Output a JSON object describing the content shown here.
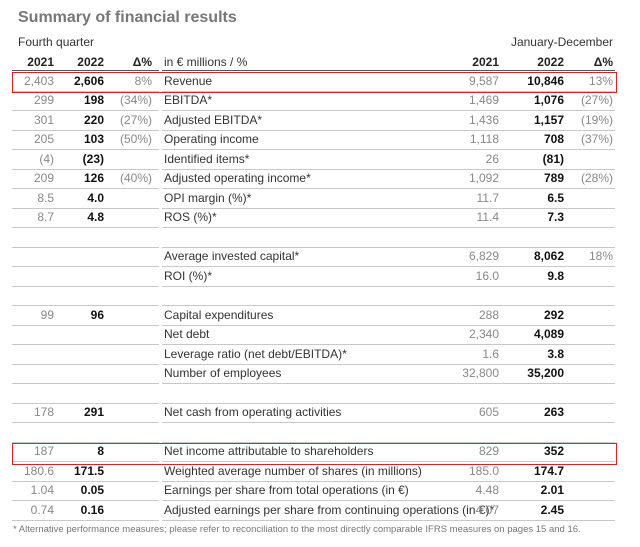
{
  "title": "Summary of financial results",
  "period_left": "Fourth quarter",
  "period_right": "January-December",
  "headers": {
    "q_2021": "2021",
    "q_2022": "2022",
    "q_delta": "Δ%",
    "label": "in € millions / %",
    "y_2021": "2021",
    "y_2022": "2022",
    "y_delta": "Δ%"
  },
  "rows": [
    {
      "label": "Revenue",
      "q2021": "2,403",
      "q2022": "2,606",
      "qd": "8%",
      "y2021": "9,587",
      "y2022": "10,846",
      "yd": "13%"
    },
    {
      "label": "EBITDA*",
      "q2021": "299",
      "q2022": "198",
      "qd": "(34%)",
      "y2021": "1,469",
      "y2022": "1,076",
      "yd": "(27%)"
    },
    {
      "label": "Adjusted EBITDA*",
      "q2021": "301",
      "q2022": "220",
      "qd": "(27%)",
      "y2021": "1,436",
      "y2022": "1,157",
      "yd": "(19%)"
    },
    {
      "label": "Operating income",
      "q2021": "205",
      "q2022": "103",
      "qd": "(50%)",
      "y2021": "1,118",
      "y2022": "708",
      "yd": "(37%)"
    },
    {
      "label": "Identified items*",
      "q2021": "(4)",
      "q2022": "(23)",
      "qd": "",
      "y2021": "26",
      "y2022": "(81)",
      "yd": ""
    },
    {
      "label": "Adjusted operating income*",
      "q2021": "209",
      "q2022": "126",
      "qd": "(40%)",
      "y2021": "1,092",
      "y2022": "789",
      "yd": "(28%)"
    },
    {
      "label": "OPI margin (%)*",
      "q2021": "8.5",
      "q2022": "4.0",
      "qd": "",
      "y2021": "11.7",
      "y2022": "6.5",
      "yd": ""
    },
    {
      "label": "ROS (%)*",
      "q2021": "8.7",
      "q2022": "4.8",
      "qd": "",
      "y2021": "11.4",
      "y2022": "7.3",
      "yd": ""
    },
    {
      "label": "",
      "q2021": "",
      "q2022": "",
      "qd": "",
      "y2021": "",
      "y2022": "",
      "yd": ""
    },
    {
      "label": "Average invested capital*",
      "q2021": "",
      "q2022": "",
      "qd": "",
      "y2021": "6,829",
      "y2022": "8,062",
      "yd": "18%"
    },
    {
      "label": "ROI (%)*",
      "q2021": "",
      "q2022": "",
      "qd": "",
      "y2021": "16.0",
      "y2022": "9.8",
      "yd": ""
    },
    {
      "label": "",
      "q2021": "",
      "q2022": "",
      "qd": "",
      "y2021": "",
      "y2022": "",
      "yd": ""
    },
    {
      "label": "Capital expenditures",
      "q2021": "99",
      "q2022": "96",
      "qd": "",
      "y2021": "288",
      "y2022": "292",
      "yd": ""
    },
    {
      "label": "Net debt",
      "q2021": "",
      "q2022": "",
      "qd": "",
      "y2021": "2,340",
      "y2022": "4,089",
      "yd": ""
    },
    {
      "label": "Leverage ratio (net debt/EBITDA)*",
      "q2021": "",
      "q2022": "",
      "qd": "",
      "y2021": "1.6",
      "y2022": "3.8",
      "yd": ""
    },
    {
      "label": "Number of employees",
      "q2021": "",
      "q2022": "",
      "qd": "",
      "y2021": "32,800",
      "y2022": "35,200",
      "yd": ""
    },
    {
      "label": "",
      "q2021": "",
      "q2022": "",
      "qd": "",
      "y2021": "",
      "y2022": "",
      "yd": ""
    },
    {
      "label": "Net cash from operating activities",
      "q2021": "178",
      "q2022": "291",
      "qd": "",
      "y2021": "605",
      "y2022": "263",
      "yd": ""
    },
    {
      "label": "",
      "q2021": "",
      "q2022": "",
      "qd": "",
      "y2021": "",
      "y2022": "",
      "yd": ""
    },
    {
      "label": "Net income attributable to shareholders",
      "q2021": "187",
      "q2022": "8",
      "qd": "",
      "y2021": "829",
      "y2022": "352",
      "yd": ""
    },
    {
      "label": "Weighted average number of shares (in millions)",
      "q2021": "180.6",
      "q2022": "171.5",
      "qd": "",
      "y2021": "185.0",
      "y2022": "174.7",
      "yd": ""
    },
    {
      "label": "Earnings per share from total operations (in €)",
      "q2021": "1.04",
      "q2022": "0.05",
      "qd": "",
      "y2021": "4.48",
      "y2022": "2.01",
      "yd": ""
    },
    {
      "label": "Adjusted earnings per share from continuing operations (in €)*",
      "q2021": "0.74",
      "q2022": "0.16",
      "qd": "",
      "y2021": "4.07",
      "y2022": "2.45",
      "yd": ""
    }
  ],
  "footnote": "* Alternative performance measures; please refer to reconciliation to the most directly comparable IFRS measures on pages 15 and 16.",
  "colors": {
    "highlight_border": "#e02020",
    "muted_text": "#888888"
  }
}
